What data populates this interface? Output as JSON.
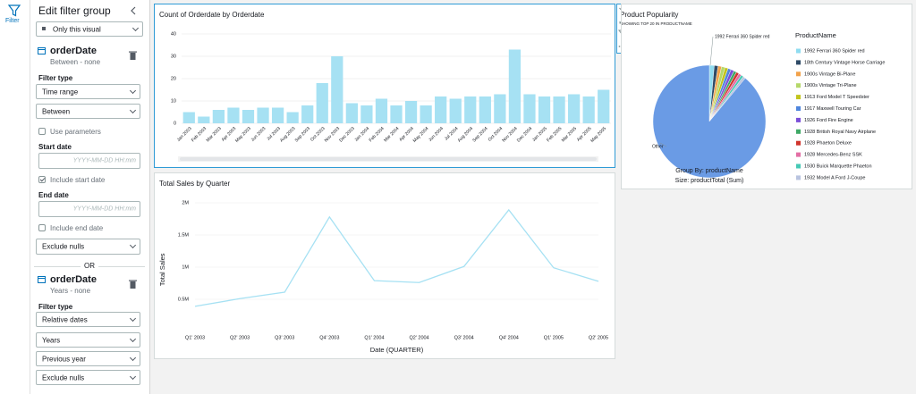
{
  "sidebar": {
    "tab": "Filter"
  },
  "filter_panel": {
    "title": "Edit filter group",
    "scope": "Only this visual",
    "separator": "OR",
    "groups": [
      {
        "field": "orderDate",
        "summary": "Between - none",
        "filter_type_label": "Filter type",
        "filter_type": "Time range",
        "condition": "Between",
        "use_parameters": {
          "label": "Use parameters",
          "checked": false
        },
        "start_label": "Start date",
        "start_placeholder": "YYYY-MM-DD HH:mm",
        "include_start": {
          "label": "Include start date",
          "checked": true
        },
        "end_label": "End date",
        "end_placeholder": "YYYY-MM-DD HH:mm",
        "include_end": {
          "label": "Include end date",
          "checked": false
        },
        "nulls": "Exclude nulls"
      },
      {
        "field": "orderDate",
        "summary": "Years - none",
        "filter_type_label": "Filter type",
        "filter_type": "Relative dates",
        "unit": "Years",
        "period": "Previous year",
        "nulls": "Exclude nulls"
      }
    ]
  },
  "chart_data": [
    {
      "type": "bar",
      "title": "Count of Orderdate by Orderdate",
      "color": "#a6e1f3",
      "grid": true,
      "categories": [
        "Jan 2003",
        "Feb 2003",
        "Mar 2003",
        "Apr 2003",
        "May 2003",
        "Jun 2003",
        "Jul 2003",
        "Aug 2003",
        "Sep 2003",
        "Oct 2003",
        "Nov 2003",
        "Dec 2003",
        "Jan 2004",
        "Feb 2004",
        "Mar 2004",
        "Apr 2004",
        "May 2004",
        "Jun 2004",
        "Jul 2004",
        "Aug 2004",
        "Sep 2004",
        "Oct 2004",
        "Nov 2004",
        "Dec 2004",
        "Jan 2005",
        "Feb 2005",
        "Mar 2005",
        "Apr 2005",
        "May 2005"
      ],
      "values": [
        5,
        3,
        6,
        7,
        6,
        7,
        7,
        5,
        8,
        18,
        30,
        9,
        8,
        11,
        8,
        10,
        8,
        12,
        11,
        12,
        12,
        13,
        33,
        13,
        12,
        12,
        13,
        12,
        15
      ],
      "ylim": [
        0,
        40
      ],
      "yticks": [
        0,
        10,
        20,
        30,
        40
      ]
    },
    {
      "type": "line",
      "title": "Total Sales by Quarter",
      "x_label": "Date (QUARTER)",
      "y_label": "Total Sales",
      "color": "#a6e1f3",
      "grid": true,
      "categories": [
        "Q1' 2003",
        "Q2' 2003",
        "Q3' 2003",
        "Q4' 2003",
        "Q1' 2004",
        "Q2' 2004",
        "Q3' 2004",
        "Q4' 2004",
        "Q1' 2005",
        "Q2' 2005"
      ],
      "values": [
        390000,
        510000,
        610000,
        1780000,
        790000,
        760000,
        1010000,
        1890000,
        990000,
        780000
      ],
      "ylim": [
        0,
        2200000
      ],
      "yticks": [
        {
          "value": 500000,
          "label": "0.5M"
        },
        {
          "value": 1000000,
          "label": "1M"
        },
        {
          "value": 1500000,
          "label": "1.5M"
        },
        {
          "value": 2000000,
          "label": "2M"
        }
      ]
    },
    {
      "type": "pie",
      "title": "Product Popularity",
      "subtitle": "SHOWING TOP 20 IN PRODUCTNAME",
      "legend_title": "ProductName",
      "categories": [
        "1992 Ferrari 360 Spider red",
        "18th Century Vintage Horse Carriage",
        "1900s Vintage Bi-Plane",
        "1900s Vintage Tri-Plane",
        "1913 Ford Model T Speedster",
        "1917 Maxwell Touring Car",
        "1926 Ford Fire Engine",
        "1928 British Royal Navy Airplane",
        "1928 Phaeton Deluxe",
        "1928 Mercedes-Benz SSK",
        "1930 Buick Marquette Phaeton",
        "1932 Model A Ford J-Coupe"
      ],
      "values": [
        1.4,
        1.1,
        1.0,
        1.0,
        0.9,
        0.9,
        0.9,
        0.8,
        0.8,
        0.8,
        0.7,
        0.7
      ],
      "colors": [
        "#8fdcf0",
        "#2e4a66",
        "#f2a24a",
        "#b5d86a",
        "#c2c51c",
        "#4f86dd",
        "#7b4fd8",
        "#3fa966",
        "#d0342c",
        "#e36fa5",
        "#46c9b5",
        "#b9c4e0"
      ],
      "other": {
        "name": "Other",
        "value": 89,
        "color": "#6a9be5"
      },
      "footer": [
        "Group By: productName",
        "Size: productTotal (Sum)"
      ]
    }
  ]
}
